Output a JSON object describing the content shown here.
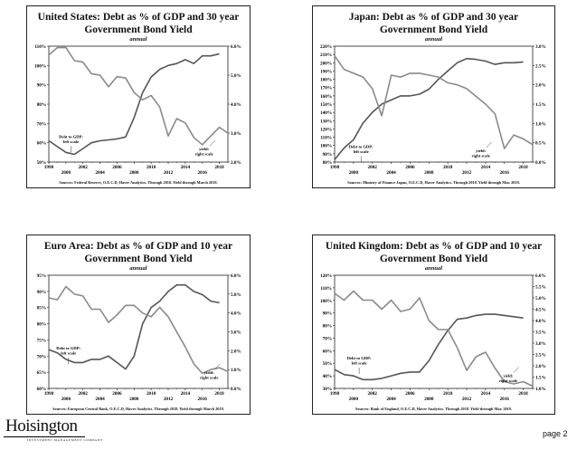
{
  "page": {
    "label": "page 2",
    "logo": "Hoisington",
    "logo_sub": "INVESTMENT MANAGEMENT COMPANY"
  },
  "chart_data": [
    {
      "type": "line",
      "title": "United States: Debt as % of GDP and 30 year Government Bond Yield",
      "title_lines": [
        "United States: Debt as % of GDP and 30 year",
        "Government Bond Yield"
      ],
      "subtitle": "annual",
      "source": "Sources: Federal Reserve, O.E.C.D, Haver Analytics. Through 2018. Yield through March 2019.",
      "x_ticks": [
        "1998",
        "2000",
        "2002",
        "2004",
        "2006",
        "2008",
        "2010",
        "2012",
        "2014",
        "2016",
        "2018"
      ],
      "xlim": [
        1998,
        2019
      ],
      "ylim_left": [
        50,
        110
      ],
      "y_left_ticks": [
        "50%",
        "60%",
        "70%",
        "80%",
        "90%",
        "100%",
        "110%"
      ],
      "ylim_right": [
        2.0,
        6.0
      ],
      "y_right_ticks": [
        "2.0%",
        "3.0%",
        "4.0%",
        "5.0%",
        "6.0%"
      ],
      "annotations": [
        {
          "text": [
            "Debt to GDP:",
            "left scale"
          ],
          "x": 2000.6,
          "y": 62.5
        },
        {
          "text": [
            "yield:",
            "right scale"
          ],
          "x": 2016.2,
          "y": 56
        }
      ],
      "series": [
        {
          "name": "Debt to GDP",
          "axis": "left",
          "x": [
            1998,
            1999,
            2000,
            2001,
            2002,
            2003,
            2004,
            2005,
            2006,
            2007,
            2008,
            2009,
            2010,
            2011,
            2012,
            2013,
            2014,
            2015,
            2016,
            2017,
            2018
          ],
          "values": [
            61,
            58,
            55,
            54,
            57,
            60,
            61,
            61.5,
            62,
            63,
            73,
            86,
            94,
            98,
            100,
            101,
            103,
            101,
            105,
            105,
            106
          ]
        },
        {
          "name": "Yield",
          "axis": "right",
          "x": [
            1998,
            1999,
            2000,
            2001,
            2002,
            2003,
            2004,
            2005,
            2006,
            2007,
            2008,
            2009,
            2010,
            2011,
            2012,
            2013,
            2014,
            2015,
            2016,
            2017,
            2018,
            2019
          ],
          "values": [
            5.7,
            5.95,
            5.95,
            5.5,
            5.45,
            5.05,
            5.0,
            4.6,
            4.95,
            4.9,
            4.4,
            4.15,
            4.3,
            3.9,
            2.9,
            3.5,
            3.35,
            2.85,
            2.6,
            2.9,
            3.2,
            3.0
          ]
        }
      ]
    },
    {
      "type": "line",
      "title": "Japan: Debt as % of GDP and 30 year Government Bond Yield",
      "title_lines": [
        "Japan: Debt as % of GDP and 30 year",
        "Government Bond Yield"
      ],
      "subtitle": "annual",
      "source": "Sources: Ministry of Finance Japan, O.E.C.D, Haver Analytics. Through 2018. Yield through Mar. 2019.",
      "x_ticks": [
        "1998",
        "2000",
        "2002",
        "2004",
        "2006",
        "2008",
        "2010",
        "2012",
        "2014",
        "2016",
        "2018"
      ],
      "xlim": [
        1998,
        2019
      ],
      "ylim_left": [
        80,
        220
      ],
      "y_left_ticks": [
        "80%",
        "90%",
        "100%",
        "110%",
        "120%",
        "130%",
        "140%",
        "150%",
        "160%",
        "170%",
        "180%",
        "190%",
        "200%",
        "210%",
        "220%"
      ],
      "ylim_right": [
        0.0,
        3.0
      ],
      "y_right_ticks": [
        "0.0%",
        "0.5%",
        "1.0%",
        "1.5%",
        "2.0%",
        "2.5%",
        "3.0%"
      ],
      "annotations": [
        {
          "text": [
            "Debt to GDP:",
            "left scale"
          ],
          "x": 2000.8,
          "y": 97
        },
        {
          "text": [
            "yield:",
            "right scale"
          ],
          "x": 2013.5,
          "y": 92
        }
      ],
      "series": [
        {
          "name": "Debt to GDP",
          "axis": "left",
          "x": [
            1998,
            1999,
            2000,
            2001,
            2002,
            2003,
            2004,
            2005,
            2006,
            2007,
            2008,
            2009,
            2010,
            2011,
            2012,
            2013,
            2014,
            2015,
            2016,
            2017,
            2018
          ],
          "values": [
            83,
            97,
            107,
            127,
            140,
            150,
            155,
            160,
            160,
            162,
            168,
            180,
            190,
            200,
            205,
            204,
            202,
            198,
            200,
            200,
            201
          ]
        },
        {
          "name": "Yield",
          "axis": "right",
          "x": [
            1998,
            1999,
            2000,
            2001,
            2002,
            2003,
            2004,
            2005,
            2006,
            2007,
            2008,
            2009,
            2010,
            2011,
            2012,
            2013,
            2014,
            2015,
            2016,
            2017,
            2018,
            2019
          ],
          "values": [
            2.75,
            2.4,
            2.3,
            2.2,
            1.9,
            1.2,
            2.25,
            2.2,
            2.3,
            2.3,
            2.25,
            2.2,
            2.05,
            2.0,
            1.9,
            1.7,
            1.5,
            1.25,
            0.35,
            0.7,
            0.6,
            0.45
          ]
        }
      ]
    },
    {
      "type": "line",
      "title": "Euro Area: Debt as % of GDP and 10 year Government Bond Yield",
      "title_lines": [
        "Euro Area: Debt as % of GDP and 10 year",
        "Government Bond Yield"
      ],
      "subtitle": "annual",
      "source": "Sources: European Central Bank, O.E.C.D, Haver Analytics. Through 2018. Yield through March 2019.",
      "x_ticks": [
        "1998",
        "2000",
        "2002",
        "2004",
        "2006",
        "2008",
        "2010",
        "2012",
        "2014",
        "2016",
        "2018"
      ],
      "xlim": [
        1998,
        2019
      ],
      "ylim_left": [
        60,
        95
      ],
      "y_left_ticks": [
        "60%",
        "65%",
        "70%",
        "75%",
        "80%",
        "85%",
        "90%",
        "95%"
      ],
      "ylim_right": [
        0.0,
        6.0
      ],
      "y_right_ticks": [
        "0.0%",
        "1.0%",
        "2.0%",
        "3.0%",
        "4.0%",
        "5.0%",
        "6.0%"
      ],
      "annotations": [
        {
          "text": [
            "Debt to GDP:",
            "left scale"
          ],
          "x": 2000.3,
          "y": 72
        },
        {
          "text": [
            "yield:",
            "right scale"
          ],
          "x": 2016.8,
          "y": 64.5
        }
      ],
      "series": [
        {
          "name": "Debt to GDP",
          "axis": "left",
          "x": [
            1998,
            1999,
            2000,
            2001,
            2002,
            2003,
            2004,
            2005,
            2006,
            2007,
            2008,
            2009,
            2010,
            2011,
            2012,
            2013,
            2014,
            2015,
            2016,
            2017,
            2018
          ],
          "values": [
            72,
            71,
            69,
            68,
            68,
            69,
            69,
            70,
            68,
            66,
            70,
            80,
            85,
            87,
            90,
            92,
            92,
            90,
            89,
            87,
            86.5
          ]
        },
        {
          "name": "Yield",
          "axis": "right",
          "x": [
            1998,
            1999,
            2000,
            2001,
            2002,
            2003,
            2004,
            2005,
            2006,
            2007,
            2008,
            2009,
            2010,
            2011,
            2012,
            2013,
            2014,
            2015,
            2016,
            2017,
            2018,
            2019
          ],
          "values": [
            4.8,
            4.7,
            5.4,
            5.0,
            4.9,
            4.2,
            4.2,
            3.5,
            3.9,
            4.4,
            4.4,
            4.0,
            3.8,
            4.3,
            3.8,
            3.0,
            2.2,
            1.3,
            0.8,
            1.0,
            1.1,
            0.9
          ]
        }
      ]
    },
    {
      "type": "line",
      "title": "United Kingdom: Debt as % of GDP and 10 year Government Bond Yield",
      "title_lines": [
        "United Kingdom: Debt as % of GDP and 10 year",
        "Government Bond Yield"
      ],
      "subtitle": "annual",
      "source": "Sources: Bank of England, O.E.C.D, Haver Analytics. Through 2018. Yield through Mar. 2019.",
      "x_ticks": [
        "1998",
        "2000",
        "2002",
        "2004",
        "2006",
        "2008",
        "2010",
        "2012",
        "2014",
        "2016",
        "2018"
      ],
      "xlim": [
        1998,
        2019
      ],
      "ylim_left": [
        30,
        120
      ],
      "y_left_ticks": [
        "30%",
        "40%",
        "50%",
        "60%",
        "70%",
        "80%",
        "90%",
        "100%",
        "110%",
        "120%"
      ],
      "ylim_right": [
        1.0,
        6.0
      ],
      "y_right_ticks": [
        "1.0%",
        "1.5%",
        "2.0%",
        "2.5%",
        "3.0%",
        "3.5%",
        "4.0%",
        "4.5%",
        "5.0%",
        "5.5%",
        "6.0%"
      ],
      "annotations": [
        {
          "text": [
            "Debt to GDP:",
            "left scale"
          ],
          "x": 2000.6,
          "y": 53
        },
        {
          "text": [
            "yield:",
            "right scale"
          ],
          "x": 2016.4,
          "y": 39
        }
      ],
      "series": [
        {
          "name": "Debt to GDP",
          "axis": "left",
          "x": [
            1998,
            1999,
            2000,
            2001,
            2002,
            2003,
            2004,
            2005,
            2006,
            2007,
            2008,
            2009,
            2010,
            2011,
            2012,
            2013,
            2014,
            2015,
            2016,
            2017,
            2018
          ],
          "values": [
            45,
            41,
            40,
            37,
            37,
            38,
            40,
            42,
            43,
            43,
            52,
            65,
            76,
            85,
            86,
            88,
            89,
            89,
            88,
            87,
            86
          ]
        },
        {
          "name": "Yield",
          "axis": "right",
          "x": [
            1998,
            1999,
            2000,
            2001,
            2002,
            2003,
            2004,
            2005,
            2006,
            2007,
            2008,
            2009,
            2010,
            2011,
            2012,
            2013,
            2014,
            2015,
            2016,
            2017,
            2018,
            2019
          ],
          "values": [
            5.2,
            4.9,
            5.3,
            4.9,
            4.9,
            4.5,
            4.9,
            4.4,
            4.5,
            5.0,
            4.0,
            3.6,
            3.6,
            2.8,
            1.8,
            2.4,
            2.6,
            1.9,
            1.3,
            1.2,
            1.3,
            1.1
          ]
        }
      ]
    }
  ]
}
